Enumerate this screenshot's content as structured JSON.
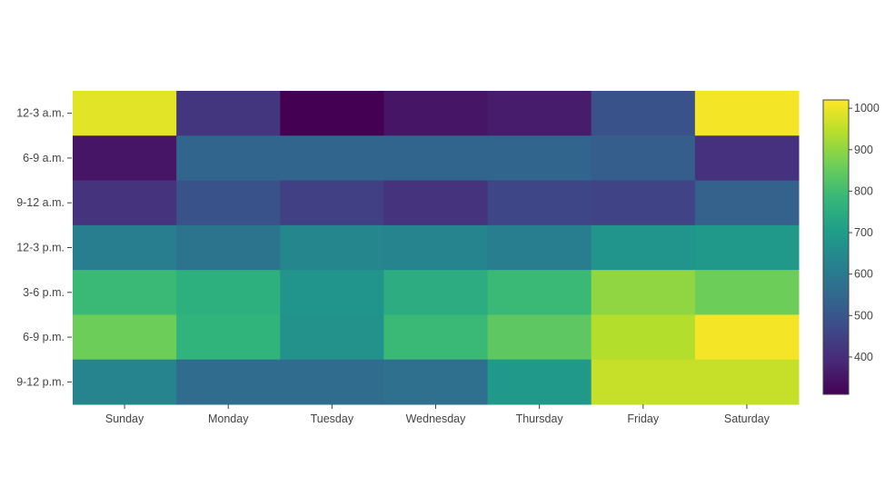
{
  "chart_data": {
    "type": "heatmap",
    "title": "",
    "xlabel": "",
    "ylabel": "",
    "x": [
      "Sunday",
      "Monday",
      "Tuesday",
      "Wednesday",
      "Thursday",
      "Friday",
      "Saturday"
    ],
    "y": [
      "12-3 a.m.",
      "6-9 a.m.",
      "9-12 a.m.",
      "12-3 p.m.",
      "3-6 p.m.",
      "6-9 p.m.",
      "9-12 p.m."
    ],
    "z": [
      [
        990,
        420,
        310,
        350,
        365,
        490,
        1010
      ],
      [
        350,
        540,
        540,
        540,
        540,
        520,
        410
      ],
      [
        415,
        490,
        445,
        415,
        460,
        455,
        530
      ],
      [
        610,
        580,
        640,
        630,
        610,
        680,
        690
      ],
      [
        790,
        760,
        680,
        750,
        790,
        900,
        860
      ],
      [
        860,
        770,
        670,
        790,
        840,
        940,
        1010
      ],
      [
        630,
        560,
        560,
        570,
        690,
        960,
        960
      ]
    ],
    "colorscale": "viridis",
    "colorbar": {
      "range": [
        310,
        1020
      ],
      "ticks": [
        400,
        500,
        600,
        700,
        800,
        900,
        1000
      ]
    }
  }
}
